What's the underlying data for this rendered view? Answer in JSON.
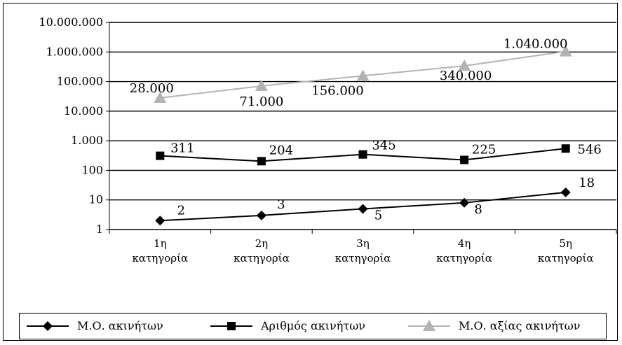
{
  "chart_data": {
    "type": "line",
    "scale": "log",
    "categories": [
      [
        "1η",
        "κατηγορία"
      ],
      [
        "2η",
        "κατηγορία"
      ],
      [
        "3η",
        "κατηγορία"
      ],
      [
        "4η",
        "κατηγορία"
      ],
      [
        "5η",
        "κατηγορία"
      ]
    ],
    "y_ticks": [
      {
        "value": 1,
        "label": "1"
      },
      {
        "value": 10,
        "label": "10"
      },
      {
        "value": 100,
        "label": "100"
      },
      {
        "value": 1000,
        "label": "1.000"
      },
      {
        "value": 10000,
        "label": "10.000"
      },
      {
        "value": 100000,
        "label": "100.000"
      },
      {
        "value": 1000000,
        "label": "1.000.000"
      },
      {
        "value": 10000000,
        "label": "10.000.000"
      }
    ],
    "ylim": [
      1,
      10000000
    ],
    "grid": true,
    "legend_position": "bottom",
    "series": [
      {
        "name": "Μ.Ο. ακινήτων",
        "marker": "diamond",
        "color": "#000000",
        "values": [
          2,
          3,
          5,
          8,
          18
        ],
        "labels": [
          "2",
          "3",
          "5",
          "8",
          "18"
        ]
      },
      {
        "name": "Αριθμός ακινήτων",
        "marker": "square",
        "color": "#000000",
        "values": [
          311,
          204,
          345,
          225,
          546
        ],
        "labels": [
          "311",
          "204",
          "345",
          "225",
          "546"
        ]
      },
      {
        "name": "Μ.Ο. αξίας ακινήτων",
        "marker": "triangle",
        "color": "#b3b3b3",
        "values": [
          28000,
          71000,
          156000,
          340000,
          1040000
        ],
        "labels": [
          "28.000",
          "71.000",
          "156.000",
          "340.000",
          "1.040.000"
        ]
      }
    ]
  }
}
